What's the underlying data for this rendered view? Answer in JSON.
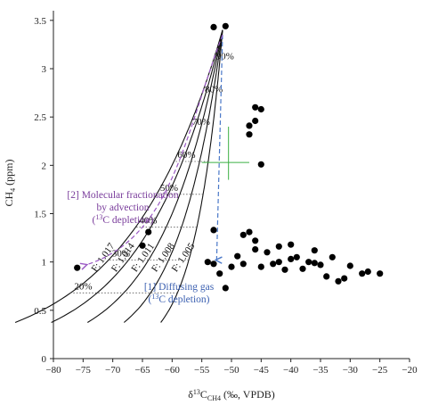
{
  "chart_data": {
    "type": "scatter",
    "xlabel": "δ13CCH4 (‰, VPDB)",
    "ylabel": "CH4 (ppm)",
    "xlim": [
      -80,
      -20
    ],
    "ylim": [
      0,
      3.6
    ],
    "xticks": [
      "−80",
      "−75",
      "−70",
      "−65",
      "−60",
      "−55",
      "−50",
      "−45",
      "−40",
      "−35",
      "−30",
      "−25",
      "−20"
    ],
    "yticks": [
      "0",
      "0.5",
      "1",
      "1.5",
      "2",
      "2.5",
      "3",
      "3.5"
    ],
    "grid": false,
    "points": [
      {
        "x": -76,
        "y": 0.94
      },
      {
        "x": -65,
        "y": 1.17
      },
      {
        "x": -64,
        "y": 1.31
      },
      {
        "x": -53,
        "y": 3.43
      },
      {
        "x": -51,
        "y": 3.44
      },
      {
        "x": -54,
        "y": 1.0
      },
      {
        "x": -53,
        "y": 0.98
      },
      {
        "x": -53,
        "y": 1.33
      },
      {
        "x": -52,
        "y": 0.88
      },
      {
        "x": -51,
        "y": 0.73
      },
      {
        "x": -50,
        "y": 0.95
      },
      {
        "x": -49,
        "y": 1.06
      },
      {
        "x": -48,
        "y": 0.98
      },
      {
        "x": -48,
        "y": 1.28
      },
      {
        "x": -47,
        "y": 1.31
      },
      {
        "x": -46,
        "y": 1.13
      },
      {
        "x": -46,
        "y": 1.22
      },
      {
        "x": -45,
        "y": 0.95
      },
      {
        "x": -44,
        "y": 1.1
      },
      {
        "x": -43,
        "y": 0.98
      },
      {
        "x": -42,
        "y": 1.16
      },
      {
        "x": -41,
        "y": 0.92
      },
      {
        "x": -40,
        "y": 1.03
      },
      {
        "x": -40,
        "y": 1.18
      },
      {
        "x": -39,
        "y": 1.05
      },
      {
        "x": -38,
        "y": 0.93
      },
      {
        "x": -37,
        "y": 1.0
      },
      {
        "x": -36,
        "y": 1.12
      },
      {
        "x": -35,
        "y": 0.97
      },
      {
        "x": -34,
        "y": 0.85
      },
      {
        "x": -33,
        "y": 1.05
      },
      {
        "x": -32,
        "y": 0.8
      },
      {
        "x": -31,
        "y": 0.83
      },
      {
        "x": -30,
        "y": 0.96
      },
      {
        "x": -28,
        "y": 0.88
      },
      {
        "x": -27,
        "y": 0.9
      },
      {
        "x": -25,
        "y": 0.88
      },
      {
        "x": -47,
        "y": 2.41
      },
      {
        "x": -46,
        "y": 2.46
      },
      {
        "x": -46,
        "y": 2.6
      },
      {
        "x": -45,
        "y": 2.58
      },
      {
        "x": -47,
        "y": 2.32
      },
      {
        "x": -45,
        "y": 2.01
      },
      {
        "x": -36,
        "y": 0.99
      },
      {
        "x": -42,
        "y": 1.0
      }
    ],
    "fractionation_curves": [
      {
        "label": "F: 1.005",
        "alpha": 1.005
      },
      {
        "label": "F: 1.008",
        "alpha": 1.008
      },
      {
        "label": "F: 1.011",
        "alpha": 1.011
      },
      {
        "label": "F: 1.014",
        "alpha": 1.014
      },
      {
        "label": "F: 1.017",
        "alpha": 1.017
      }
    ],
    "source_point": {
      "x": -51.5,
      "y": 3.4
    },
    "remaining_fraction_labels": [
      "90%",
      "80%",
      "70%",
      "60%",
      "50%",
      "40%",
      "30%",
      "20%"
    ],
    "remaining_fractions": [
      0.9,
      0.8,
      0.7,
      0.6,
      0.5,
      0.4,
      0.3,
      0.2
    ],
    "dotted_fractions": [
      0.6,
      0.5,
      0.4,
      0.3,
      0.2
    ],
    "annotations": {
      "advection_line1": "[2] Molecular fractionation",
      "advection_line2": "by advection",
      "advection_line3": "(13C depletion)",
      "diffusion_line1": "[1] Diffusing gas",
      "diffusion_line2": "(13C depletion)"
    },
    "colors": {
      "points": "#000000",
      "curves": "#111111",
      "advection_arrow": "#9b59c4",
      "diffusion_arrow": "#4a78c8",
      "crosshair": "#3cb043"
    }
  }
}
